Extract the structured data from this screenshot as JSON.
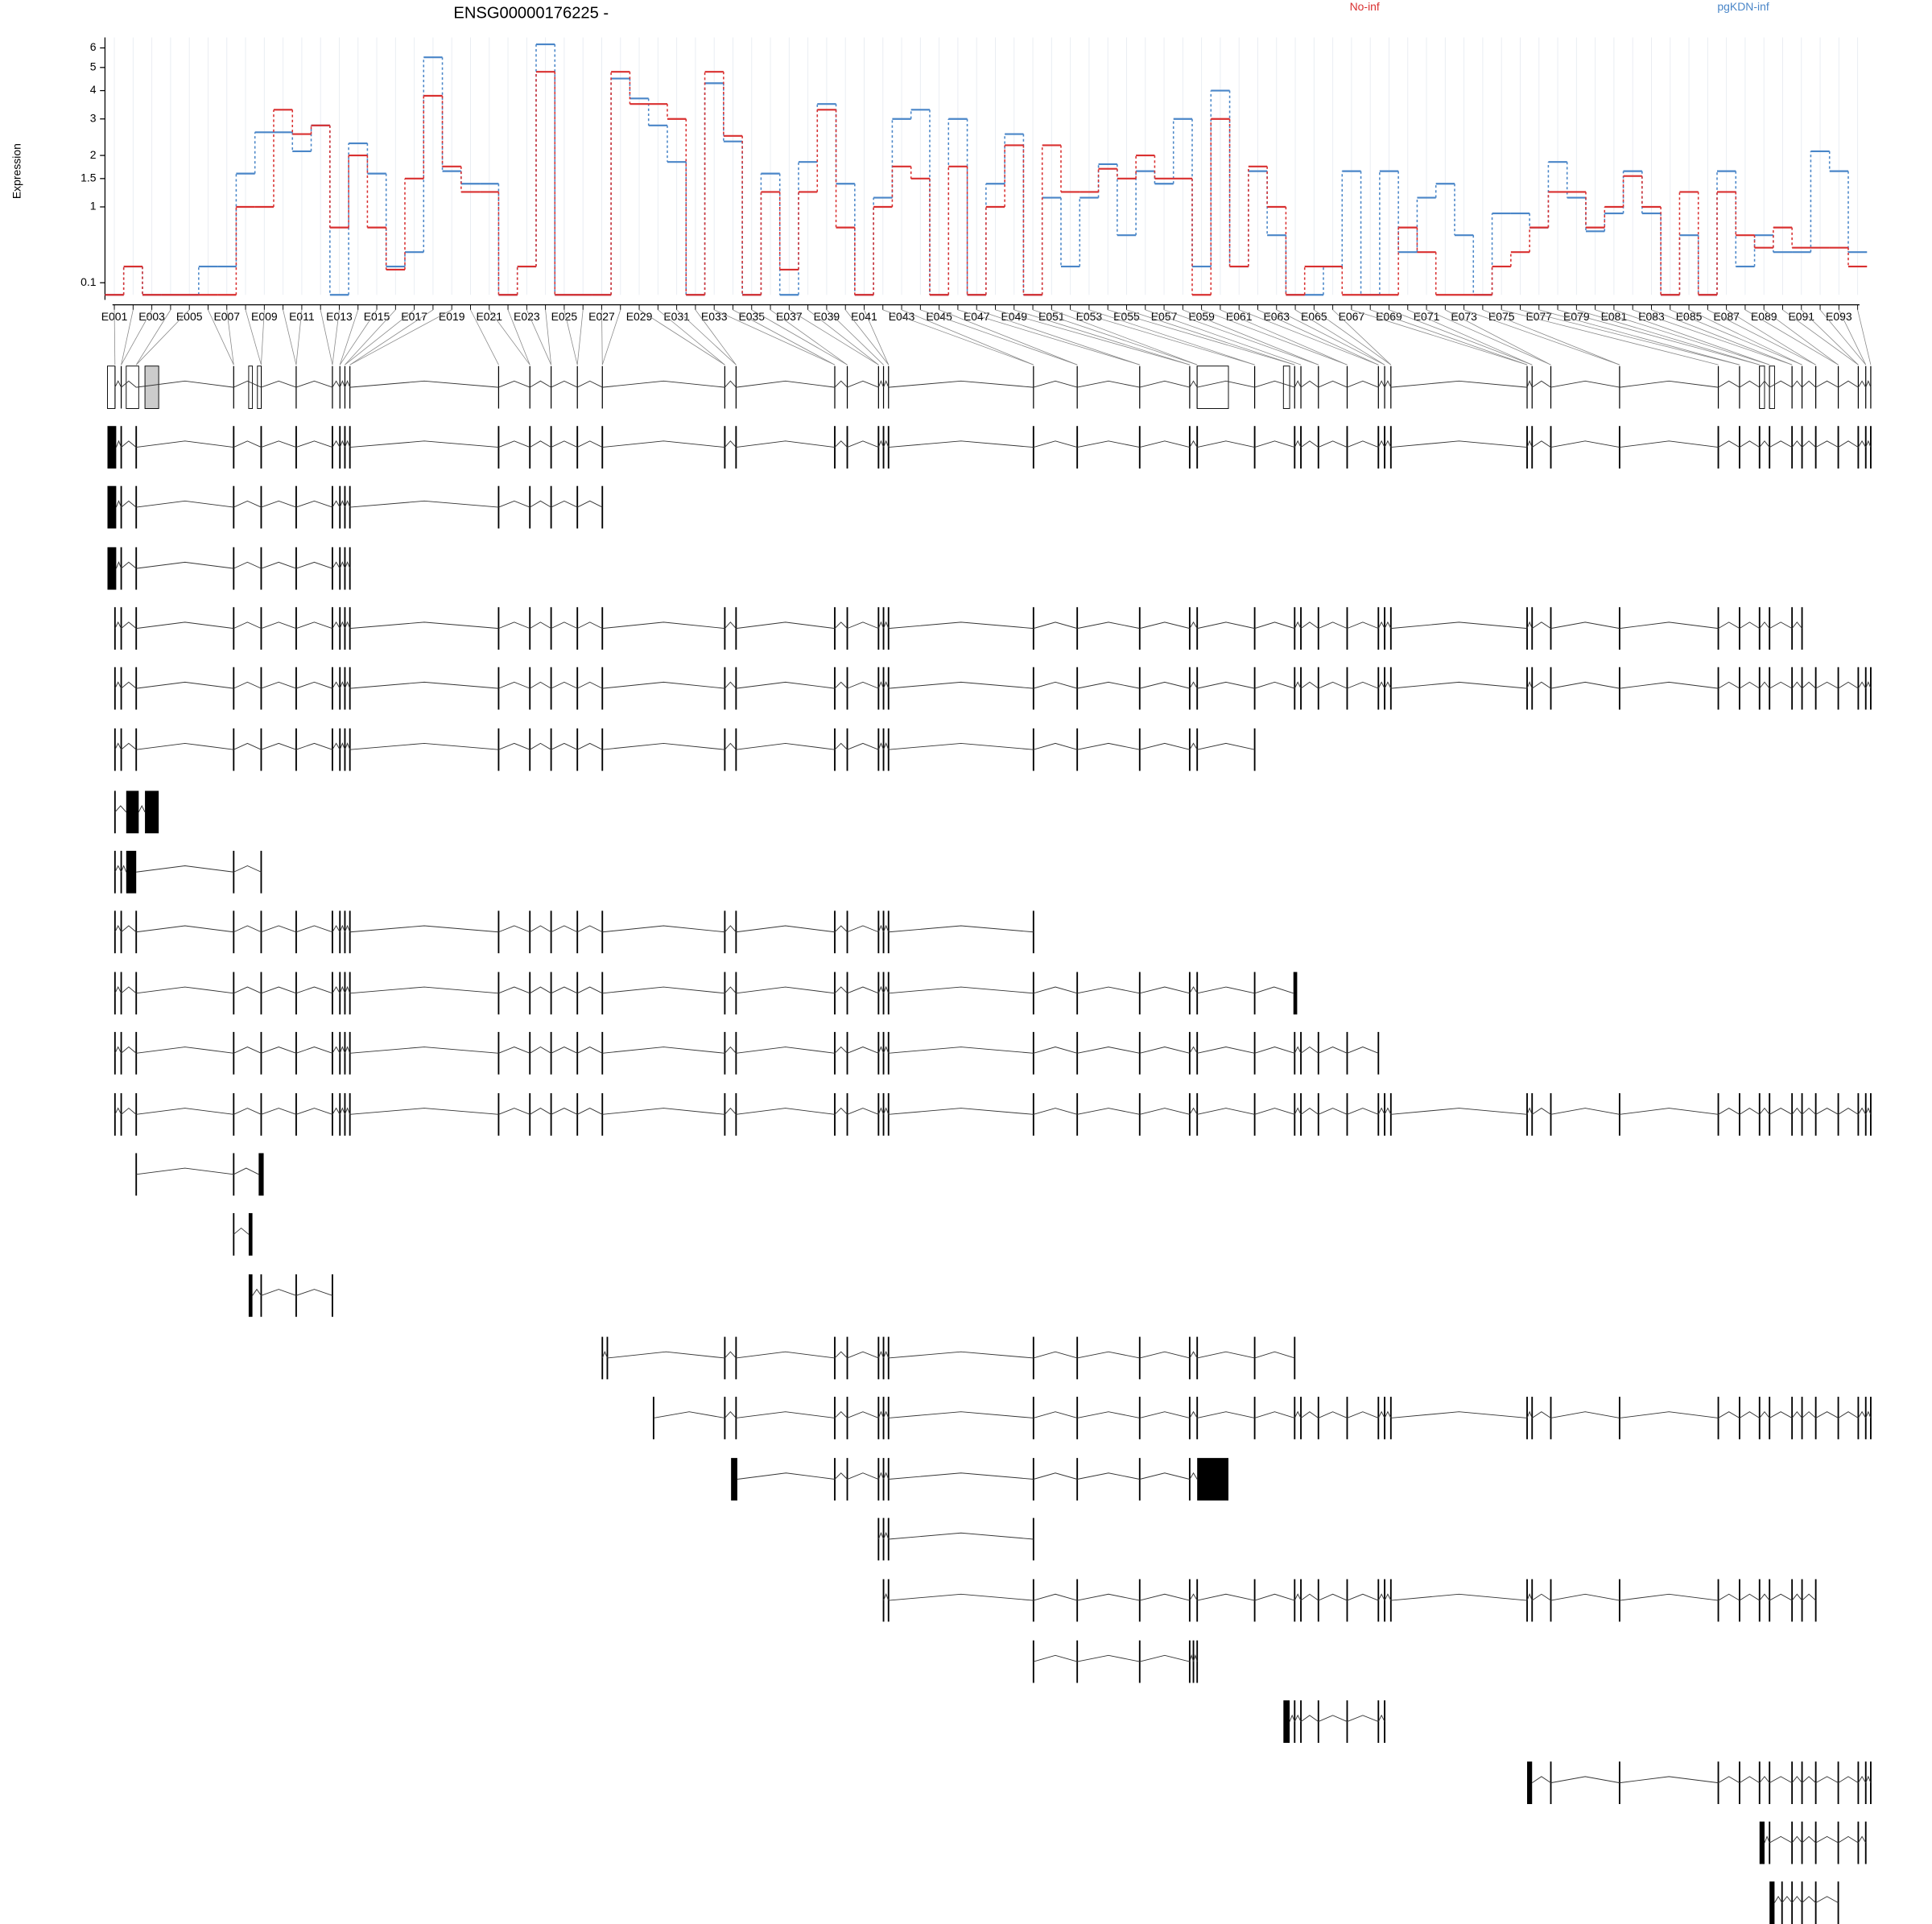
{
  "chart_data": {
    "type": "line",
    "title": "ENSG00000176225 -",
    "y_label": "Expression",
    "y_scale": "log10(y+1)",
    "grid": true,
    "categories": [
      "E001",
      null,
      "E003",
      null,
      "E005",
      null,
      "E007",
      null,
      "E009",
      null,
      "E011",
      null,
      "E013",
      null,
      "E015",
      null,
      "E017",
      null,
      "E019",
      null,
      "E021",
      null,
      "E023",
      null,
      "E025",
      null,
      "E027",
      null,
      "E029",
      null,
      "E031",
      null,
      "E033",
      null,
      "E035",
      null,
      "E037",
      null,
      "E039",
      null,
      "E041",
      null,
      "E043",
      null,
      "E045",
      null,
      "E047",
      null,
      "E049",
      null,
      "E051",
      null,
      "E053",
      null,
      "E055",
      null,
      "E057",
      null,
      "E059",
      null,
      "E061",
      null,
      "E063",
      null,
      "E065",
      null,
      "E067",
      null,
      "E069",
      null,
      "E071",
      null,
      "E073",
      null,
      "E075",
      null,
      "E077",
      null,
      "E079",
      null,
      "E081",
      null,
      "E083",
      null,
      "E085",
      null,
      "E087",
      null,
      "E089",
      null,
      "E091",
      null,
      "E093",
      null
    ],
    "series": [
      {
        "name": "pgKDN-inf",
        "color": "#4a86c8",
        "values": [
          0,
          0.25,
          0,
          0,
          0,
          0.25,
          0.25,
          1.6,
          2.6,
          2.6,
          2.1,
          2.8,
          0,
          2.3,
          1.6,
          0.25,
          0.4,
          5.5,
          1.65,
          1.4,
          1.4,
          0,
          0.25,
          6.2,
          0,
          0,
          0,
          4.5,
          3.7,
          2.8,
          1.85,
          0,
          4.3,
          2.35,
          0,
          1.6,
          0,
          1.85,
          3.5,
          1.4,
          0,
          1.15,
          3,
          3.3,
          0,
          3,
          0,
          1.4,
          2.55,
          0,
          1.15,
          0.25,
          1.15,
          1.8,
          0.6,
          1.65,
          1.4,
          3,
          0.25,
          4,
          0.25,
          1.65,
          0.6,
          0,
          0,
          0.25,
          1.65,
          0,
          1.65,
          0.4,
          1.15,
          1.4,
          0.6,
          0,
          0.9,
          0.9,
          0.7,
          1.85,
          1.15,
          0.65,
          0.9,
          1.65,
          0.9,
          0,
          0.6,
          0,
          1.65,
          0.25,
          0.6,
          0.4,
          0.4,
          2.1,
          1.65,
          0.4
        ]
      },
      {
        "name": "No-inf",
        "color": "#d93030",
        "values": [
          0,
          0.25,
          0,
          0,
          0,
          0,
          0,
          1,
          1,
          3.3,
          2.55,
          2.8,
          0.7,
          2,
          0.7,
          0.22,
          1.5,
          3.8,
          1.75,
          1.25,
          1.25,
          0,
          0.25,
          4.8,
          0,
          0,
          0,
          4.8,
          3.5,
          3.5,
          3,
          0,
          4.8,
          2.5,
          0,
          1.25,
          0.22,
          1.25,
          3.3,
          0.7,
          0,
          1,
          1.75,
          1.5,
          0,
          1.75,
          0,
          1,
          2.25,
          0,
          2.25,
          1.25,
          1.25,
          1.7,
          1.5,
          2,
          1.5,
          1.5,
          0,
          3,
          0.25,
          1.75,
          1,
          0,
          0.25,
          0.25,
          0,
          0,
          0,
          0.7,
          0.4,
          0,
          0,
          0,
          0.25,
          0.4,
          0.7,
          1.25,
          1.25,
          0.7,
          1,
          1.55,
          1,
          0,
          1.25,
          0,
          1.25,
          0.6,
          0.45,
          0.7,
          0.45,
          0.45,
          0.45,
          0.25
        ]
      }
    ],
    "ylim": [
      0,
      6.6
    ],
    "yticks": [
      0.1,
      1,
      1.5,
      2,
      3,
      4,
      5,
      6
    ],
    "xlim": [
      70003031,
      70205726
    ],
    "xticks": [
      70003031,
      70025553,
      70048074,
      70070596,
      70093118,
      70115639,
      70138161,
      70160683,
      70183204,
      70205726
    ]
  }
}
